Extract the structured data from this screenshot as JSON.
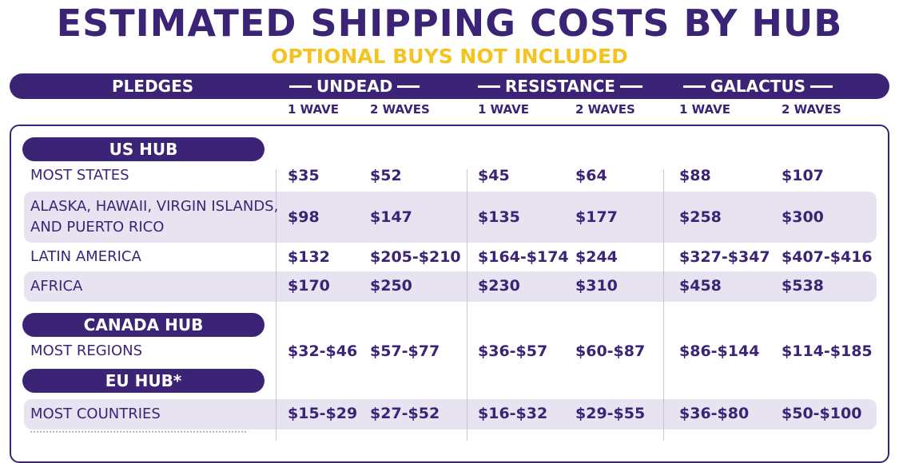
{
  "title": "ESTIMATED SHIPPING COSTS BY HUB",
  "subtitle": "OPTIONAL BUYS NOT INCLUDED",
  "header": {
    "pledges_label": "PLEDGES",
    "groups": [
      "UNDEAD",
      "RESISTANCE",
      "GALACTUS"
    ],
    "waves": [
      "1 WAVE",
      "2 WAVES",
      "1 WAVE",
      "2 WAVES",
      "1 WAVE",
      "2 WAVES"
    ]
  },
  "hubs": {
    "us": {
      "label": "US HUB",
      "rows": [
        {
          "label": "MOST STATES",
          "values": [
            "$35",
            "$52",
            "$45",
            "$64",
            "$88",
            "$107"
          ]
        },
        {
          "label_line1": "ALASKA, HAWAII, VIRGIN ISLANDS,",
          "label_line2": "AND PUERTO RICO",
          "values": [
            "$98",
            "$147",
            "$135",
            "$177",
            "$258",
            "$300"
          ]
        },
        {
          "label": "LATIN AMERICA",
          "values": [
            "$132",
            "$205-$210",
            "$164-$174",
            "$244",
            "$327-$347",
            "$407-$416"
          ]
        },
        {
          "label": "AFRICA",
          "values": [
            "$170",
            "$250",
            "$230",
            "$310",
            "$458",
            "$538"
          ]
        }
      ]
    },
    "canada": {
      "label": "CANADA HUB",
      "rows": [
        {
          "label": "MOST REGIONS",
          "values": [
            "$32-$46",
            "$57-$77",
            "$36-$57",
            "$60-$87",
            "$86-$144",
            "$114-$185"
          ]
        }
      ]
    },
    "eu": {
      "label": "EU HUB*",
      "rows": [
        {
          "label": "MOST COUNTRIES",
          "values": [
            "$15-$29",
            "$27-$52",
            "$16-$32",
            "$29-$55",
            "$36-$80",
            "$50-$100"
          ]
        }
      ]
    }
  }
}
